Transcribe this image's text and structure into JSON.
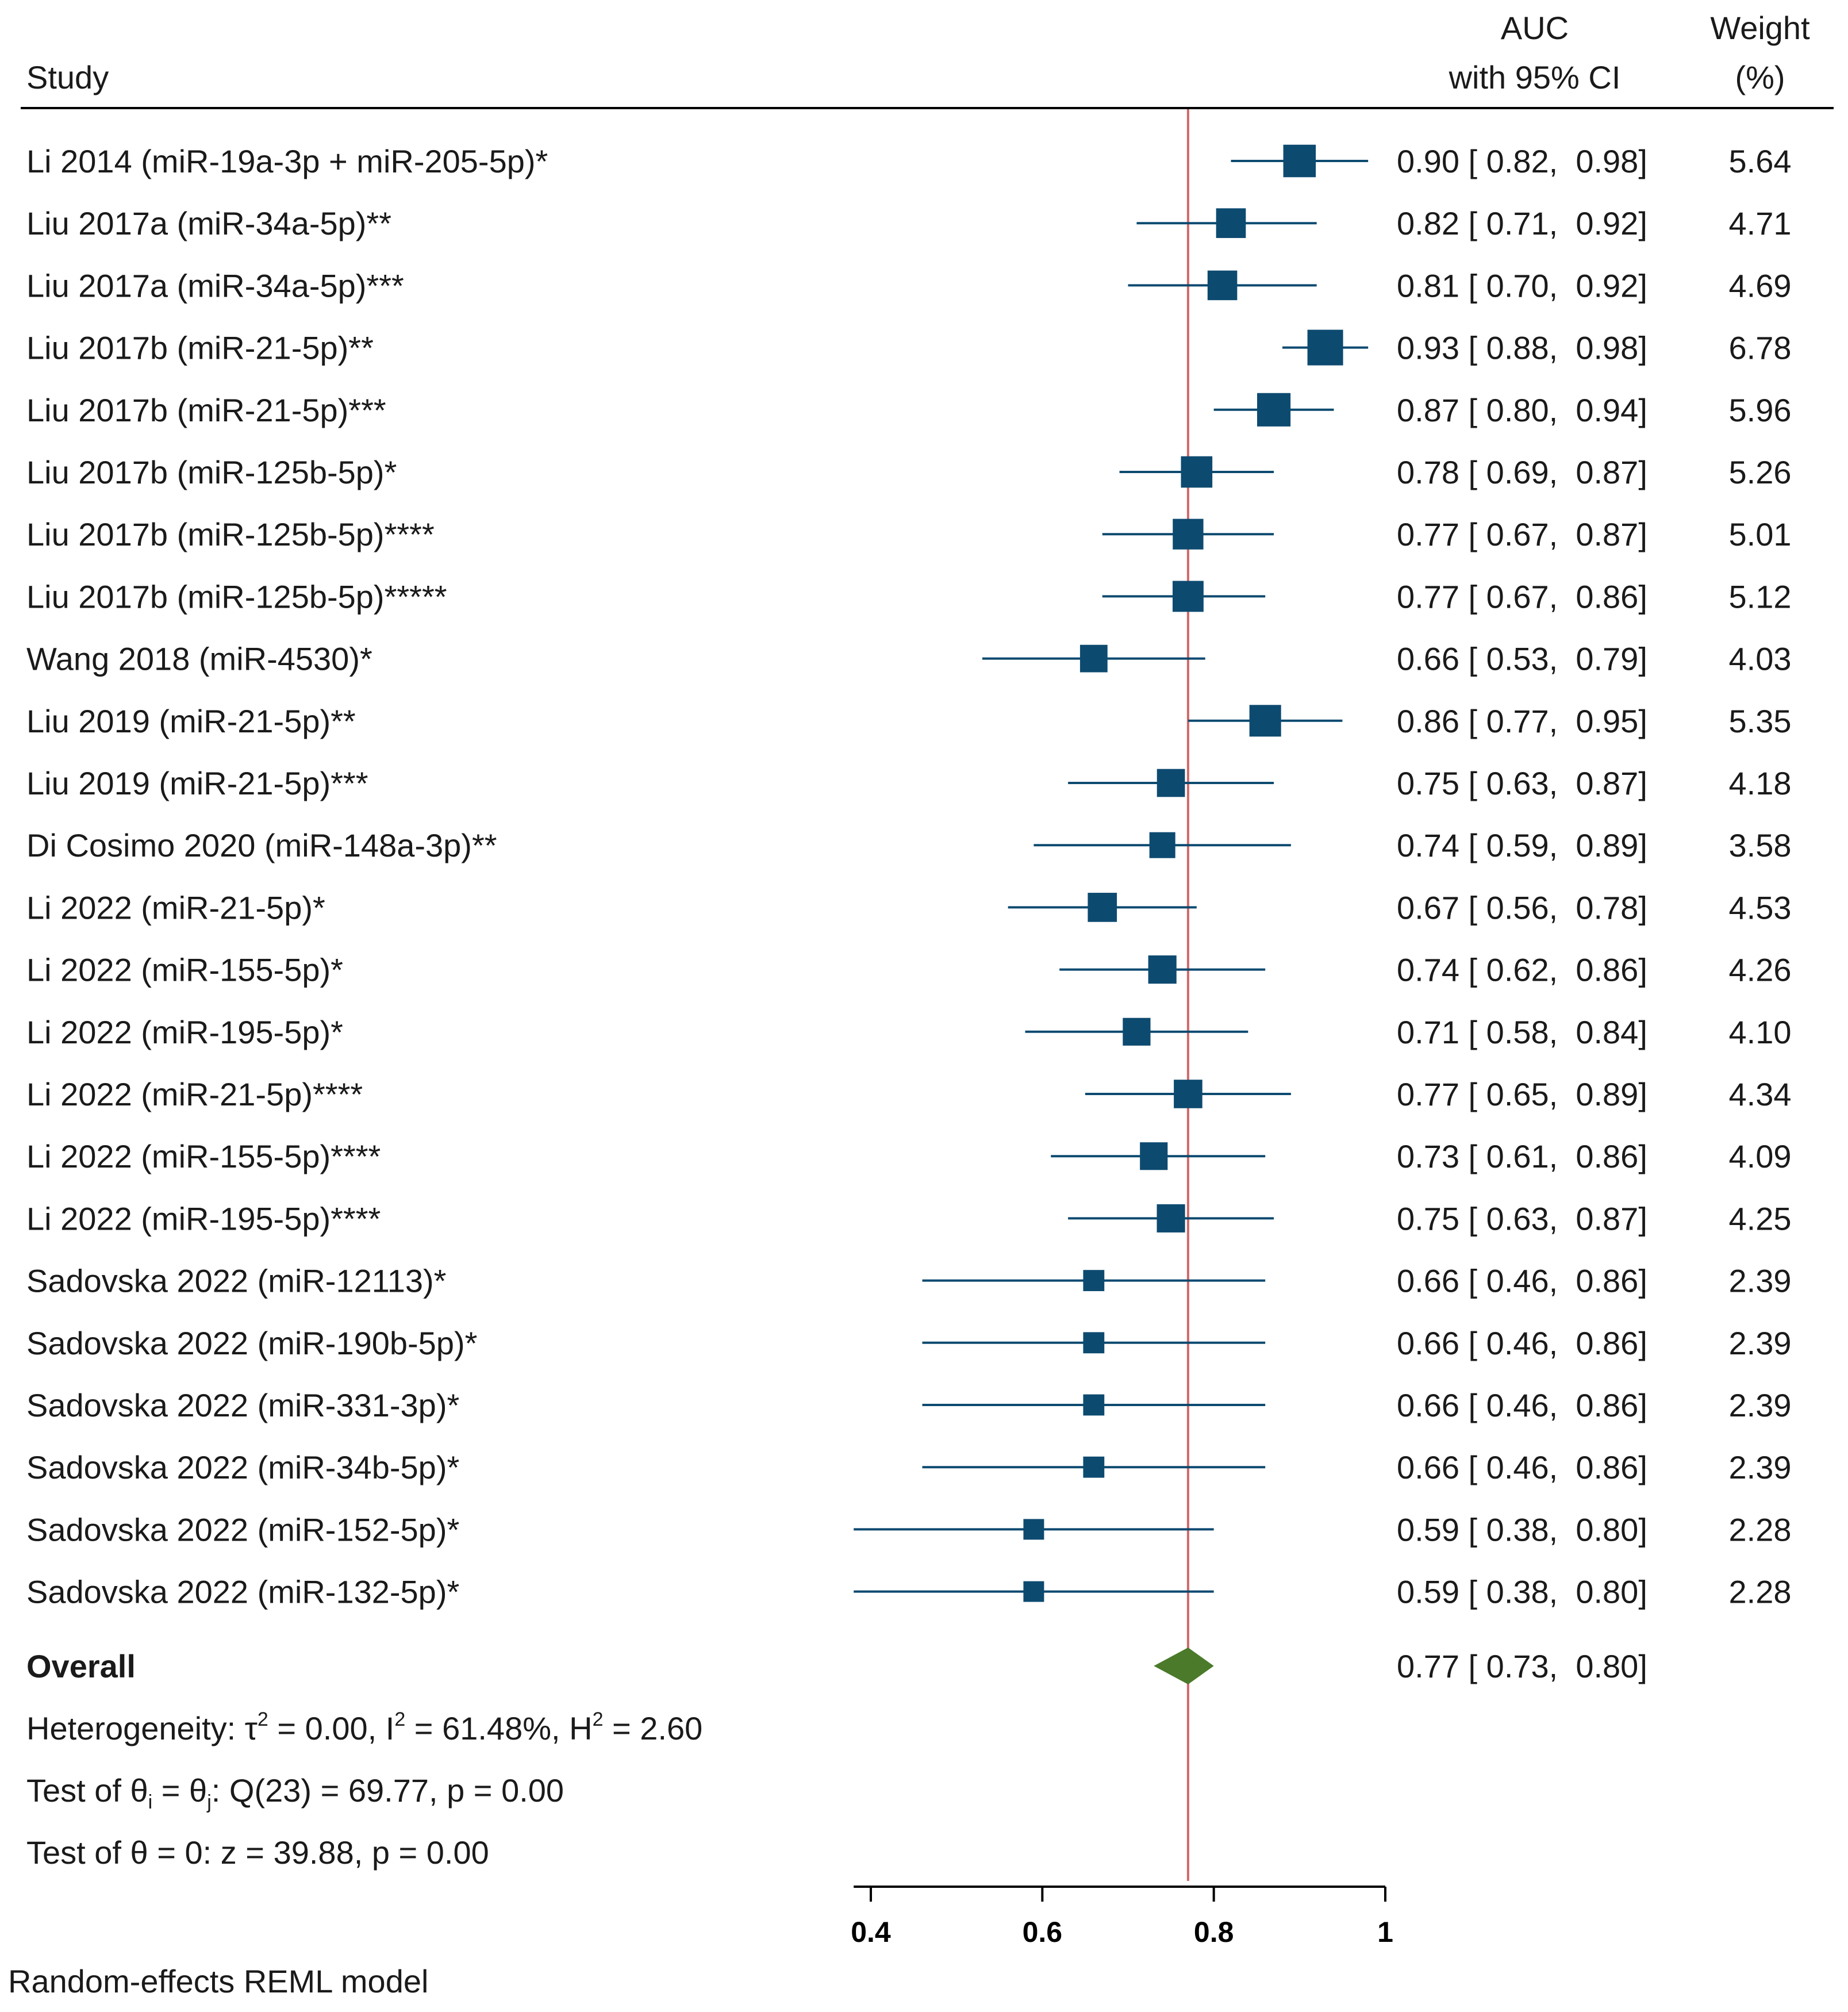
{
  "chart_data": {
    "type": "forest",
    "title": "",
    "columns": {
      "study": "Study",
      "auc_line1": "AUC",
      "auc_line2": "with 95% CI",
      "weight_line1": "Weight",
      "weight_line2": "(%)"
    },
    "studies": [
      {
        "label": "Li 2014 (miR-19a-3p + miR-205-5p)*",
        "auc": 0.9,
        "lo": 0.82,
        "hi": 0.98,
        "ci_text": "0.90 [ 0.82,  0.98]",
        "weight": 5.64,
        "weight_text": "5.64"
      },
      {
        "label": "Liu 2017a (miR-34a-5p)**",
        "auc": 0.82,
        "lo": 0.71,
        "hi": 0.92,
        "ci_text": "0.82 [ 0.71,  0.92]",
        "weight": 4.71,
        "weight_text": "4.71"
      },
      {
        "label": "Liu 2017a (miR-34a-5p)***",
        "auc": 0.81,
        "lo": 0.7,
        "hi": 0.92,
        "ci_text": "0.81 [ 0.70,  0.92]",
        "weight": 4.69,
        "weight_text": "4.69"
      },
      {
        "label": "Liu 2017b (miR-21-5p)**",
        "auc": 0.93,
        "lo": 0.88,
        "hi": 0.98,
        "ci_text": "0.93 [ 0.88,  0.98]",
        "weight": 6.78,
        "weight_text": "6.78"
      },
      {
        "label": "Liu 2017b (miR-21-5p)***",
        "auc": 0.87,
        "lo": 0.8,
        "hi": 0.94,
        "ci_text": "0.87 [ 0.80,  0.94]",
        "weight": 5.96,
        "weight_text": "5.96"
      },
      {
        "label": "Liu 2017b (miR-125b-5p)*",
        "auc": 0.78,
        "lo": 0.69,
        "hi": 0.87,
        "ci_text": "0.78 [ 0.69,  0.87]",
        "weight": 5.26,
        "weight_text": "5.26"
      },
      {
        "label": "Liu 2017b (miR-125b-5p)****",
        "auc": 0.77,
        "lo": 0.67,
        "hi": 0.87,
        "ci_text": "0.77 [ 0.67,  0.87]",
        "weight": 5.01,
        "weight_text": "5.01"
      },
      {
        "label": "Liu 2017b (miR-125b-5p)*****",
        "auc": 0.77,
        "lo": 0.67,
        "hi": 0.86,
        "ci_text": "0.77 [ 0.67,  0.86]",
        "weight": 5.12,
        "weight_text": "5.12"
      },
      {
        "label": "Wang 2018 (miR-4530)*",
        "auc": 0.66,
        "lo": 0.53,
        "hi": 0.79,
        "ci_text": "0.66 [ 0.53,  0.79]",
        "weight": 4.03,
        "weight_text": "4.03"
      },
      {
        "label": "Liu 2019 (miR-21-5p)**",
        "auc": 0.86,
        "lo": 0.77,
        "hi": 0.95,
        "ci_text": "0.86 [ 0.77,  0.95]",
        "weight": 5.35,
        "weight_text": "5.35"
      },
      {
        "label": "Liu 2019 (miR-21-5p)***",
        "auc": 0.75,
        "lo": 0.63,
        "hi": 0.87,
        "ci_text": "0.75 [ 0.63,  0.87]",
        "weight": 4.18,
        "weight_text": "4.18"
      },
      {
        "label": "Di Cosimo 2020 (miR-148a-3p)**",
        "auc": 0.74,
        "lo": 0.59,
        "hi": 0.89,
        "ci_text": "0.74 [ 0.59,  0.89]",
        "weight": 3.58,
        "weight_text": "3.58"
      },
      {
        "label": "Li 2022 (miR-21-5p)*",
        "auc": 0.67,
        "lo": 0.56,
        "hi": 0.78,
        "ci_text": "0.67 [ 0.56,  0.78]",
        "weight": 4.53,
        "weight_text": "4.53"
      },
      {
        "label": "Li 2022 (miR-155-5p)*",
        "auc": 0.74,
        "lo": 0.62,
        "hi": 0.86,
        "ci_text": "0.74 [ 0.62,  0.86]",
        "weight": 4.26,
        "weight_text": "4.26"
      },
      {
        "label": "Li 2022 (miR-195-5p)*",
        "auc": 0.71,
        "lo": 0.58,
        "hi": 0.84,
        "ci_text": "0.71 [ 0.58,  0.84]",
        "weight": 4.1,
        "weight_text": "4.10"
      },
      {
        "label": "Li 2022 (miR-21-5p)****",
        "auc": 0.77,
        "lo": 0.65,
        "hi": 0.89,
        "ci_text": "0.77 [ 0.65,  0.89]",
        "weight": 4.34,
        "weight_text": "4.34"
      },
      {
        "label": "Li 2022 (miR-155-5p)****",
        "auc": 0.73,
        "lo": 0.61,
        "hi": 0.86,
        "ci_text": "0.73 [ 0.61,  0.86]",
        "weight": 4.09,
        "weight_text": "4.09"
      },
      {
        "label": "Li 2022 (miR-195-5p)****",
        "auc": 0.75,
        "lo": 0.63,
        "hi": 0.87,
        "ci_text": "0.75 [ 0.63,  0.87]",
        "weight": 4.25,
        "weight_text": "4.25"
      },
      {
        "label": "Sadovska 2022 (miR-12113)*",
        "auc": 0.66,
        "lo": 0.46,
        "hi": 0.86,
        "ci_text": "0.66 [ 0.46,  0.86]",
        "weight": 2.39,
        "weight_text": "2.39"
      },
      {
        "label": "Sadovska 2022 (miR-190b-5p)*",
        "auc": 0.66,
        "lo": 0.46,
        "hi": 0.86,
        "ci_text": "0.66 [ 0.46,  0.86]",
        "weight": 2.39,
        "weight_text": "2.39"
      },
      {
        "label": "Sadovska 2022 (miR-331-3p)*",
        "auc": 0.66,
        "lo": 0.46,
        "hi": 0.86,
        "ci_text": "0.66 [ 0.46,  0.86]",
        "weight": 2.39,
        "weight_text": "2.39"
      },
      {
        "label": "Sadovska 2022 (miR-34b-5p)*",
        "auc": 0.66,
        "lo": 0.46,
        "hi": 0.86,
        "ci_text": "0.66 [ 0.46,  0.86]",
        "weight": 2.39,
        "weight_text": "2.39"
      },
      {
        "label": "Sadovska 2022 (miR-152-5p)*",
        "auc": 0.59,
        "lo": 0.38,
        "hi": 0.8,
        "ci_text": "0.59 [ 0.38,  0.80]",
        "weight": 2.28,
        "weight_text": "2.28"
      },
      {
        "label": "Sadovska 2022 (miR-132-5p)*",
        "auc": 0.59,
        "lo": 0.38,
        "hi": 0.8,
        "ci_text": "0.59 [ 0.38,  0.80]",
        "weight": 2.28,
        "weight_text": "2.28"
      }
    ],
    "overall": {
      "label": "Overall",
      "auc": 0.77,
      "lo": 0.73,
      "hi": 0.8,
      "ci_text": "0.77 [ 0.73,  0.80]"
    },
    "heterogeneity": {
      "prefix": "Heterogeneity: τ",
      "tau_sup": "2",
      "tau_value": " = 0.00, I",
      "i_sup": "2",
      "i_value": " = 61.48%, H",
      "h_sup": "2",
      "h_value": " = 2.60"
    },
    "test_equal": {
      "prefix": "Test of θ",
      "sub_i": "i",
      "mid": " = θ",
      "sub_j": "j",
      "suffix": ": Q(23) = 69.77, p = 0.00"
    },
    "test_zero": "Test of θ = 0: z = 39.88, p = 0.00",
    "xaxis": {
      "ticks": [
        0.4,
        0.6,
        0.8,
        1
      ],
      "tick_labels": [
        "0.4",
        "0.6",
        "0.8",
        "1"
      ],
      "xlim": [
        0.38,
        1.0
      ]
    },
    "reference_line": 0.77,
    "footnote": "Random-effects REML model",
    "colors": {
      "marker": "#0d4a70",
      "ci_line": "#0d4a70",
      "overall_diamond": "#4a7a2a",
      "reference_line": "#d2696a",
      "axis": "#000000",
      "text": "#1a1a1a"
    }
  }
}
